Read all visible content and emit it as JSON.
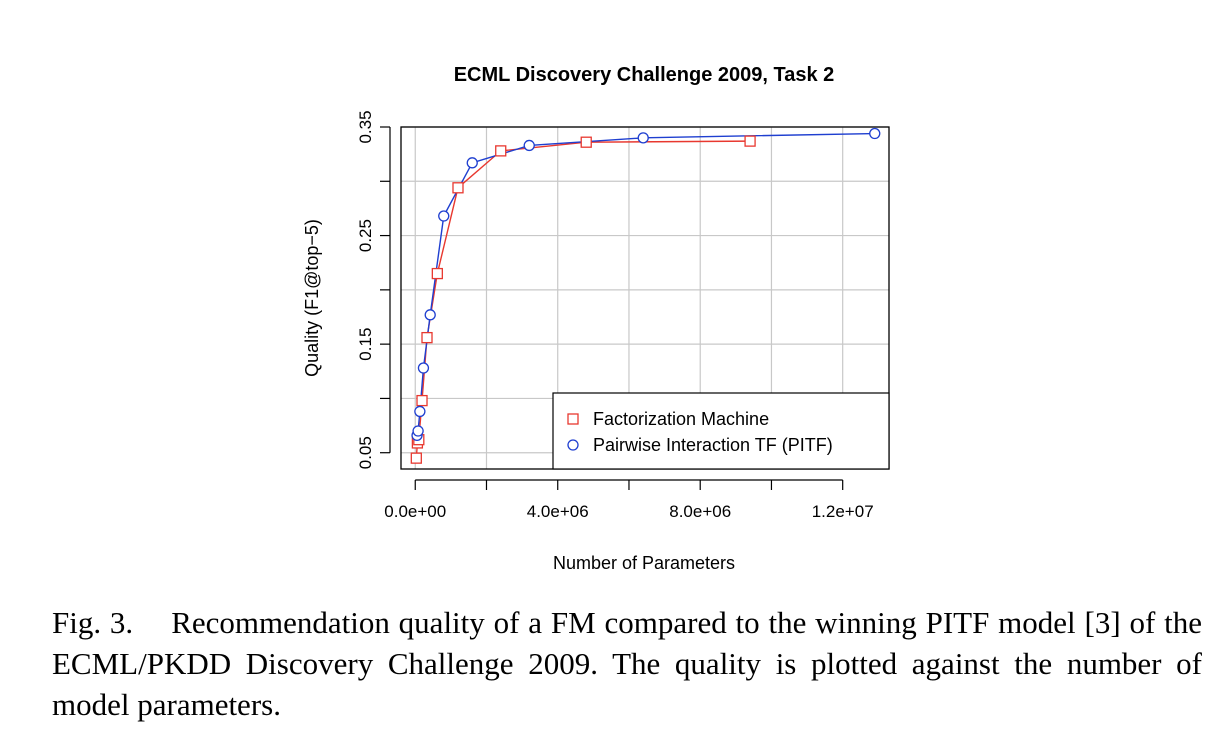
{
  "chart_data": {
    "type": "line",
    "title": "ECML Discovery Challenge 2009, Task 2",
    "xlabel": "Number of Parameters",
    "ylabel": "Quality (F1@top−5)",
    "xlim": [
      -400000,
      13300000
    ],
    "ylim": [
      0.035,
      0.35
    ],
    "xticks": [
      0,
      4000000,
      8000000,
      12000000
    ],
    "xtick_labels": [
      "0.0e+00",
      "4.0e+06",
      "8.0e+06",
      "1.2e+07"
    ],
    "yticks": [
      0.05,
      0.15,
      0.25,
      0.35
    ],
    "ytick_labels": [
      "0.05",
      "0.15",
      "0.25",
      "0.35"
    ],
    "grid": true,
    "legend_position": "bottom-right",
    "series": [
      {
        "name": "Factorization Machine",
        "color": "#e8382f",
        "marker": "square",
        "x": [
          30000,
          60000,
          100000,
          190000,
          330000,
          620000,
          1200000,
          2400000,
          4800000,
          9400000
        ],
        "y": [
          0.045,
          0.059,
          0.062,
          0.098,
          0.156,
          0.215,
          0.294,
          0.328,
          0.336,
          0.337
        ]
      },
      {
        "name": "Pairwise Interaction TF (PITF)",
        "color": "#1f3fd0",
        "marker": "circle",
        "x": [
          50000,
          80000,
          130000,
          230000,
          420000,
          800000,
          1600000,
          3200000,
          6400000,
          12900000
        ],
        "y": [
          0.066,
          0.07,
          0.088,
          0.128,
          0.177,
          0.268,
          0.317,
          0.333,
          0.34,
          0.344
        ]
      }
    ]
  },
  "caption": {
    "label": "Fig. 3.",
    "text": "Recommendation quality of a FM compared to the winning PITF model [3] of the ECML/PKDD Discovery Challenge 2009. The quality is plotted against the number of model parameters."
  }
}
